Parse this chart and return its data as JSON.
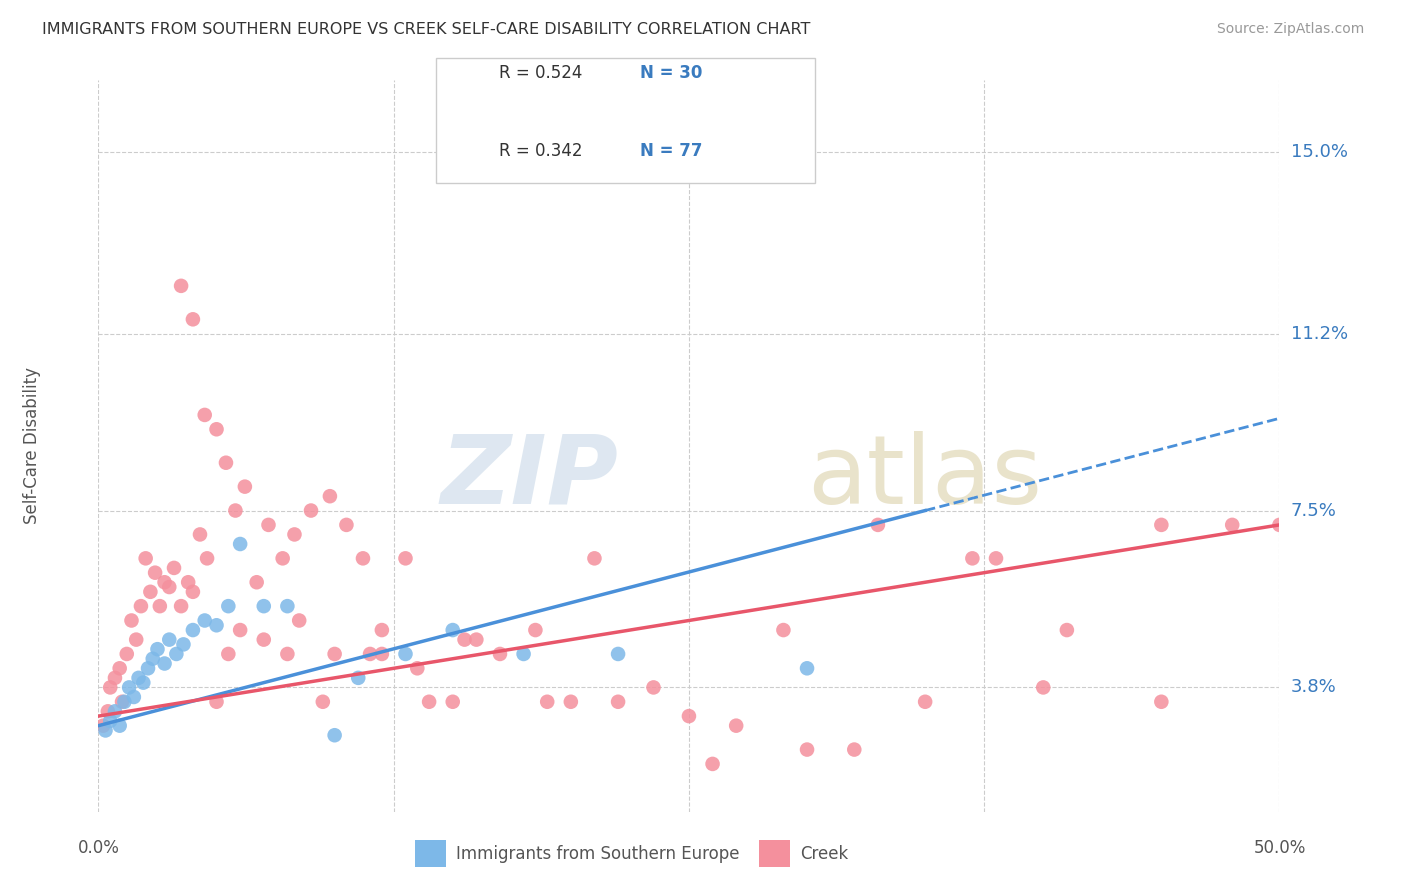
{
  "title": "IMMIGRANTS FROM SOUTHERN EUROPE VS CREEK SELF-CARE DISABILITY CORRELATION CHART",
  "source": "Source: ZipAtlas.com",
  "ylabel": "Self-Care Disability",
  "ytick_labels": [
    "3.8%",
    "7.5%",
    "11.2%",
    "15.0%"
  ],
  "ytick_values": [
    3.8,
    7.5,
    11.2,
    15.0
  ],
  "xlim": [
    0.0,
    50.0
  ],
  "ylim": [
    1.2,
    16.5
  ],
  "legend_blue_R": "R = 0.524",
  "legend_blue_N": "N = 30",
  "legend_pink_R": "R = 0.342",
  "legend_pink_N": "N = 77",
  "legend_label_blue": "Immigrants from Southern Europe",
  "legend_label_pink": "Creek",
  "color_blue": "#7db8e8",
  "color_pink": "#f4909d",
  "color_blue_line": "#4a90d9",
  "color_pink_line": "#e8566a",
  "color_accent": "#3a7bbf",
  "color_title": "#333333",
  "color_source": "#999999",
  "blue_points_x": [
    0.3,
    0.5,
    0.7,
    0.9,
    1.1,
    1.3,
    1.5,
    1.7,
    1.9,
    2.1,
    2.3,
    2.5,
    2.8,
    3.0,
    3.3,
    3.6,
    4.0,
    4.5,
    5.0,
    5.5,
    6.0,
    7.0,
    8.0,
    10.0,
    11.0,
    13.0,
    15.0,
    18.0,
    22.0,
    30.0
  ],
  "blue_points_y": [
    2.9,
    3.1,
    3.3,
    3.0,
    3.5,
    3.8,
    3.6,
    4.0,
    3.9,
    4.2,
    4.4,
    4.6,
    4.3,
    4.8,
    4.5,
    4.7,
    5.0,
    5.2,
    5.1,
    5.5,
    6.8,
    5.5,
    5.5,
    2.8,
    4.0,
    4.5,
    5.0,
    4.5,
    4.5,
    4.2
  ],
  "pink_points_x": [
    0.2,
    0.4,
    0.5,
    0.7,
    0.9,
    1.0,
    1.2,
    1.4,
    1.6,
    1.8,
    2.0,
    2.2,
    2.4,
    2.6,
    2.8,
    3.0,
    3.2,
    3.5,
    3.8,
    4.0,
    4.3,
    4.6,
    5.0,
    5.4,
    5.8,
    6.2,
    6.7,
    7.2,
    7.8,
    8.3,
    9.0,
    9.8,
    10.5,
    11.2,
    12.0,
    13.0,
    14.0,
    15.5,
    17.0,
    19.0,
    21.0,
    23.5,
    26.0,
    29.0,
    33.0,
    37.0,
    41.0,
    45.0,
    48.0,
    5.0,
    5.5,
    6.0,
    7.0,
    8.0,
    10.0,
    12.0,
    15.0,
    20.0,
    25.0,
    30.0,
    35.0,
    40.0,
    45.0,
    50.0,
    3.5,
    4.0,
    4.5,
    8.5,
    9.5,
    11.5,
    13.5,
    16.0,
    18.5,
    22.0,
    27.0,
    32.0,
    38.0
  ],
  "pink_points_y": [
    3.0,
    3.3,
    3.8,
    4.0,
    4.2,
    3.5,
    4.5,
    5.2,
    4.8,
    5.5,
    6.5,
    5.8,
    6.2,
    5.5,
    6.0,
    5.9,
    6.3,
    5.5,
    6.0,
    5.8,
    7.0,
    6.5,
    9.2,
    8.5,
    7.5,
    8.0,
    6.0,
    7.2,
    6.5,
    7.0,
    7.5,
    7.8,
    7.2,
    6.5,
    4.5,
    6.5,
    3.5,
    4.8,
    4.5,
    3.5,
    6.5,
    3.8,
    2.2,
    5.0,
    7.2,
    6.5,
    5.0,
    3.5,
    7.2,
    3.5,
    4.5,
    5.0,
    4.8,
    4.5,
    4.5,
    5.0,
    3.5,
    3.5,
    3.2,
    2.5,
    3.5,
    3.8,
    7.2,
    7.2,
    12.2,
    11.5,
    9.5,
    5.2,
    3.5,
    4.5,
    4.2,
    4.8,
    5.0,
    3.5,
    3.0,
    2.5,
    6.5
  ]
}
